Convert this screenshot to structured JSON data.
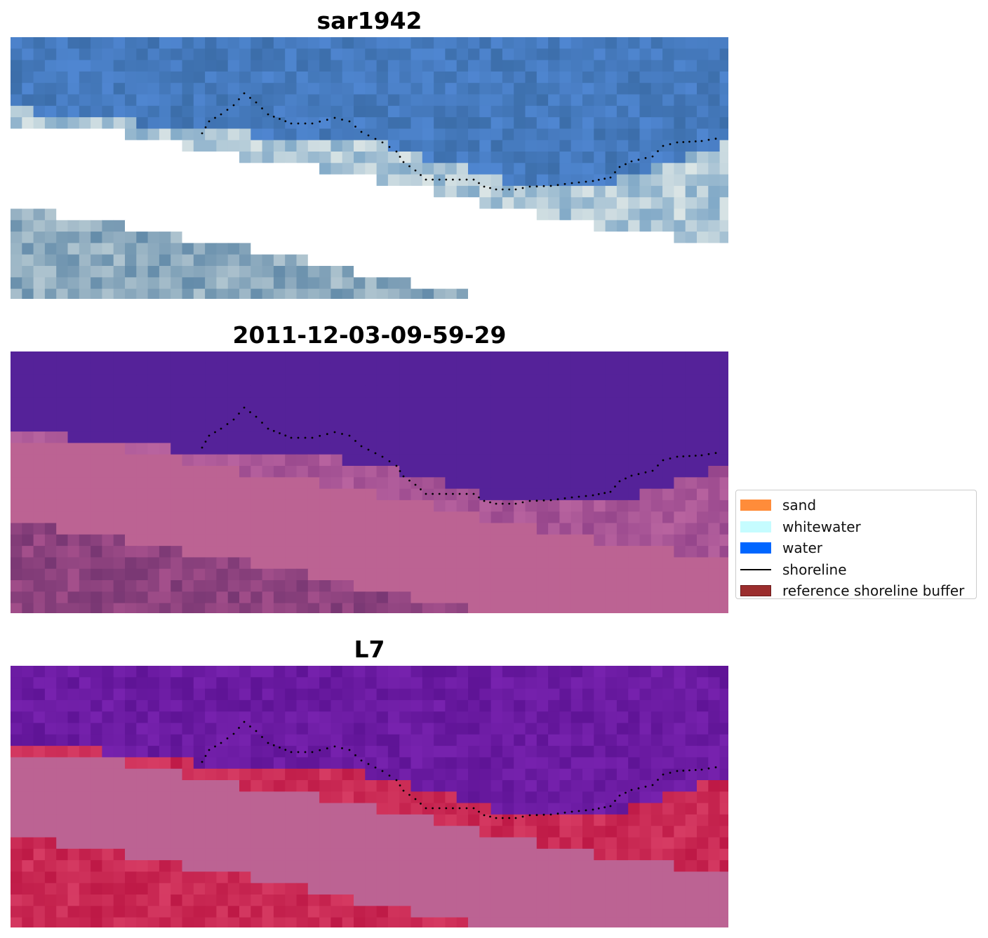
{
  "panels": [
    {
      "title": "sar1942",
      "style": "rgb"
    },
    {
      "title": "2011-12-03-09-59-29",
      "style": "class"
    },
    {
      "title": "L7",
      "style": "index"
    }
  ],
  "legend": {
    "items": [
      {
        "label": "sand",
        "color": "#ff8c3a",
        "kind": "patch"
      },
      {
        "label": "whitewater",
        "color": "#c6fcff",
        "kind": "patch"
      },
      {
        "label": "water",
        "color": "#0066ff",
        "kind": "patch"
      },
      {
        "label": "shoreline",
        "color": "#000000",
        "kind": "line"
      },
      {
        "label": "reference shoreline buffer",
        "color": "#a52a2a",
        "kind": "patch"
      }
    ]
  },
  "colors": {
    "sea_blue": "#4a7fb5",
    "class_water": "#552299",
    "class_land": "#bc6393",
    "index_water": "#6a1a9a",
    "index_land_red": "#c41a47"
  }
}
